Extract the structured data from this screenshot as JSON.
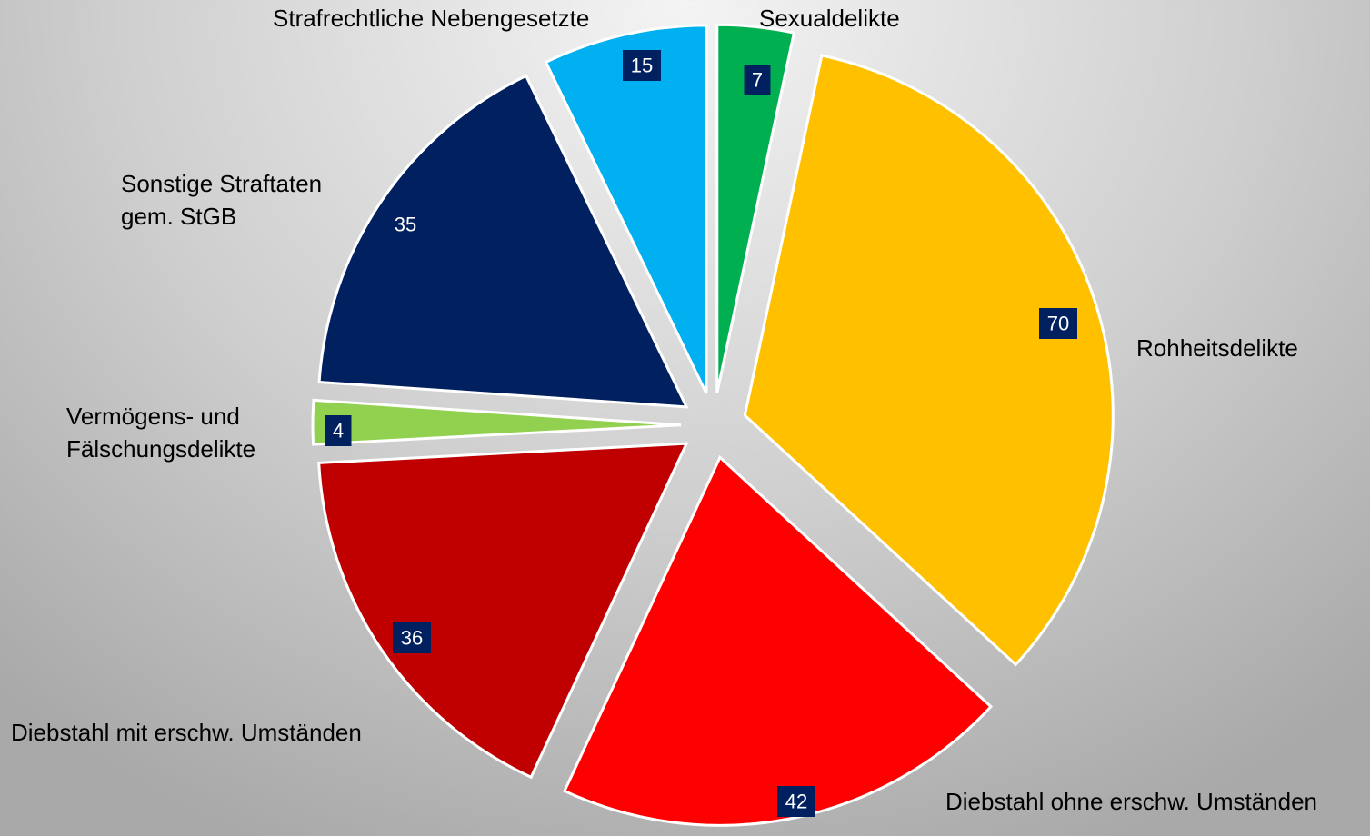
{
  "chart_data": {
    "type": "pie",
    "categories": [
      "Sexualdelikte",
      "Rohheitsdelikte",
      "Diebstahl ohne erschw. Umständen",
      "Diebstahl mit erschw. Umständen",
      "Vermögens- und Fälschungsdelikte",
      "Sonstige Straftaten gem. StGB",
      "Strafrechtliche Nebengesetzte"
    ],
    "values": [
      7,
      70,
      42,
      36,
      4,
      35,
      15
    ],
    "colors": [
      "#00b050",
      "#ffc000",
      "#ff0000",
      "#c00000",
      "#92d050",
      "#002060",
      "#00b0f0"
    ],
    "value_label_box": "#002060"
  }
}
